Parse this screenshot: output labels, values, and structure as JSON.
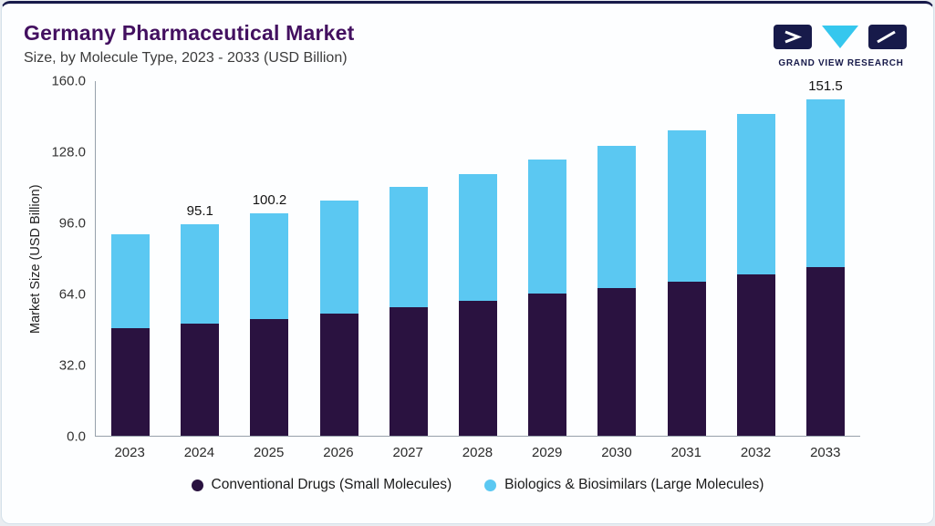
{
  "header": {
    "title": "Germany Pharmaceutical Market",
    "subtitle": "Size, by Molecule Type, 2023 - 2033 (USD Billion)",
    "logo_text": "GRAND VIEW RESEARCH"
  },
  "colors": {
    "title": "#431060",
    "top_border": "#171A4A",
    "axis": "#97A1AB",
    "conventional_bar": "#2A1240",
    "biologics_bar": "#5BC8F2"
  },
  "chart_data": {
    "type": "bar",
    "stacked": true,
    "title": "Germany Pharmaceutical Market Size, by Molecule Type, 2023 - 2033 (USD Billion)",
    "ylabel": "Market Size (USD Billion)",
    "ylim": [
      0,
      160
    ],
    "yticks": [
      0,
      32,
      64,
      96,
      128,
      160
    ],
    "grid": false,
    "legend_position": "bottom",
    "categories": [
      "2023",
      "2024",
      "2025",
      "2026",
      "2027",
      "2028",
      "2029",
      "2030",
      "2031",
      "2032",
      "2033"
    ],
    "series": [
      {
        "key": "conventional",
        "name": "Conventional Drugs (Small Molecules)",
        "color": "#2A1240",
        "values": [
          48.5,
          50.3,
          52.5,
          55.0,
          57.8,
          60.7,
          64.0,
          66.5,
          69.4,
          72.6,
          75.9
        ]
      },
      {
        "key": "biologics",
        "name": "Biologics & Biosimilars (Large Molecules)",
        "color": "#5BC8F2",
        "values": [
          42.2,
          44.8,
          47.7,
          50.8,
          54.2,
          57.0,
          60.3,
          63.9,
          68.0,
          72.2,
          75.6
        ]
      }
    ],
    "totals": [
      90.7,
      95.1,
      100.2,
      105.8,
      112.0,
      117.7,
      124.3,
      130.4,
      137.4,
      144.8,
      151.5
    ],
    "bar_labels": {
      "2024": "95.1",
      "2025": "100.2",
      "2033": "151.5"
    }
  }
}
